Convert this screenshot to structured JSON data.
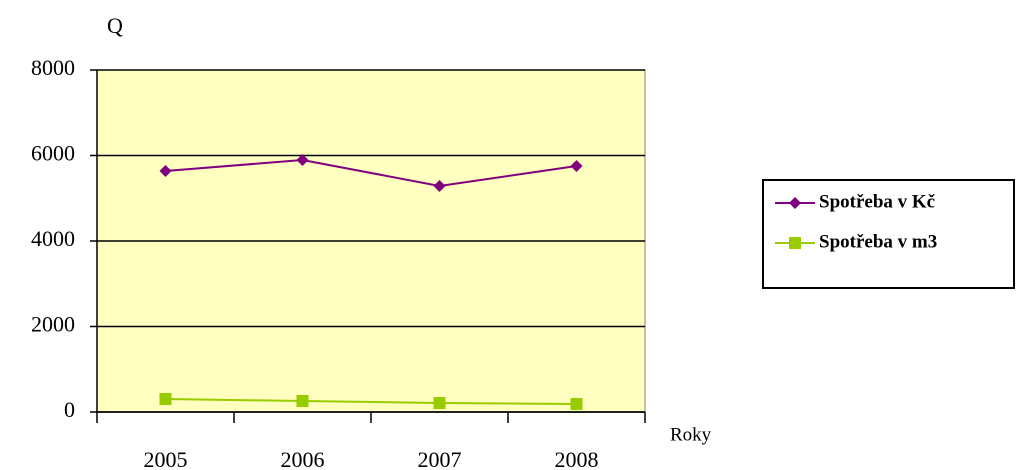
{
  "chart_data": {
    "type": "line",
    "ylabel": "Q",
    "xlabel": "Roky",
    "categories": [
      "2005",
      "2006",
      "2007",
      "2008"
    ],
    "series": [
      {
        "name": "Spotřeba v Kč",
        "color": "#800080",
        "marker": "diamond",
        "values": [
          5637,
          5895,
          5287,
          5754
        ]
      },
      {
        "name": "Spotřeba v m3",
        "color": "#99CC00",
        "marker": "square",
        "values": [
          304,
          257,
          210,
          187
        ]
      }
    ],
    "ylim": [
      0,
      8000
    ],
    "yticks": [
      0,
      2000,
      4000,
      6000,
      8000
    ],
    "grid": true,
    "plot_background": "#FFFFC0",
    "legend": "right"
  }
}
